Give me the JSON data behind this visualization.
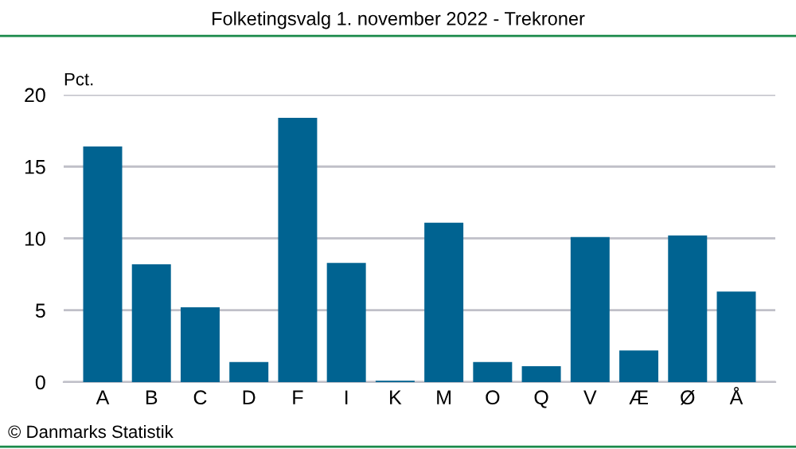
{
  "chart_data": {
    "type": "bar",
    "title": "Folketingsvalg 1. november 2022 - Trekroner",
    "ylabel": "Pct.",
    "categories": [
      "A",
      "B",
      "C",
      "D",
      "F",
      "I",
      "K",
      "M",
      "O",
      "Q",
      "V",
      "Æ",
      "Ø",
      "Å"
    ],
    "values": [
      16.4,
      8.2,
      5.2,
      1.4,
      18.4,
      8.3,
      0.1,
      11.1,
      1.4,
      1.1,
      10.1,
      2.2,
      10.2,
      6.3
    ],
    "color": "#006391",
    "ylim": [
      0,
      20
    ],
    "yticks": [
      0,
      5,
      10,
      15,
      20
    ],
    "grid": "y",
    "annotations": [
      "© Danmarks Statistik"
    ]
  }
}
